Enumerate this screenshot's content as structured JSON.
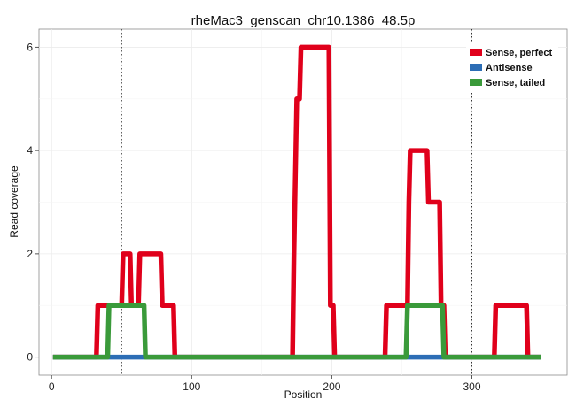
{
  "chart_data": {
    "type": "line",
    "title": "rheMac3_genscan_chr10.1386_48.5p",
    "xlabel": "Position",
    "ylabel": "Read coverage",
    "xlim": [
      -9,
      368
    ],
    "ylim": [
      -0.35,
      6.35
    ],
    "x_ticks": [
      0,
      100,
      200,
      300
    ],
    "y_ticks": [
      0,
      2,
      4,
      6
    ],
    "grid": true,
    "vlines": [
      50,
      300
    ],
    "legend_position": "top-right",
    "series": [
      {
        "name": "Sense, perfect",
        "color": "#e0001b",
        "points": [
          [
            1,
            0
          ],
          [
            32,
            0
          ],
          [
            33,
            1
          ],
          [
            50,
            1
          ],
          [
            51,
            2
          ],
          [
            56,
            2
          ],
          [
            57,
            1
          ],
          [
            62,
            1
          ],
          [
            63,
            2
          ],
          [
            78,
            2
          ],
          [
            79,
            1
          ],
          [
            87,
            1
          ],
          [
            88,
            0
          ],
          [
            172,
            0
          ],
          [
            173,
            2
          ],
          [
            175,
            5
          ],
          [
            177,
            5
          ],
          [
            178,
            6
          ],
          [
            198,
            6
          ],
          [
            199,
            1
          ],
          [
            201,
            1
          ],
          [
            202,
            0
          ],
          [
            238,
            0
          ],
          [
            239,
            1
          ],
          [
            254,
            1
          ],
          [
            255,
            3
          ],
          [
            256,
            4
          ],
          [
            268,
            4
          ],
          [
            269,
            3
          ],
          [
            277,
            3
          ],
          [
            278,
            1
          ],
          [
            280,
            1
          ],
          [
            281,
            0
          ],
          [
            316,
            0
          ],
          [
            317,
            1
          ],
          [
            339,
            1
          ],
          [
            340,
            0
          ],
          [
            349,
            0
          ]
        ]
      },
      {
        "name": "Antisense",
        "color": "#2c6db5",
        "points": [
          [
            1,
            0
          ],
          [
            349,
            0
          ]
        ]
      },
      {
        "name": "Sense, tailed",
        "color": "#3a9a3a",
        "points": [
          [
            1,
            0
          ],
          [
            40,
            0
          ],
          [
            41,
            1
          ],
          [
            66,
            1
          ],
          [
            67,
            0
          ],
          [
            253,
            0
          ],
          [
            254,
            1
          ],
          [
            279,
            1
          ],
          [
            280,
            0
          ],
          [
            349,
            0
          ]
        ]
      }
    ]
  }
}
